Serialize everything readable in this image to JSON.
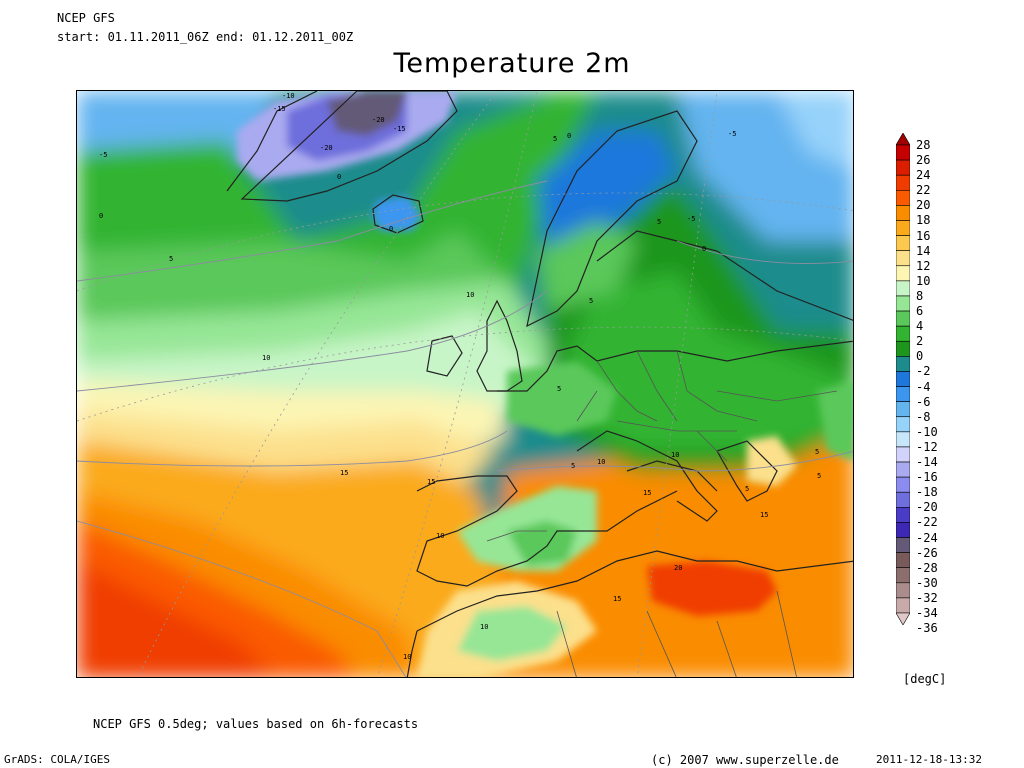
{
  "header": {
    "model": "NCEP GFS",
    "period": "start: 01.11.2011_06Z   end: 01.12.2011_00Z",
    "title": "Temperature 2m"
  },
  "footer": {
    "note": "NCEP GFS 0.5deg; values based on 6h-forecasts",
    "grads": "GrADS: COLA/IGES",
    "copyright": "(c) 2007 www.superzelle.de",
    "timestamp": "2011-12-18-13:32"
  },
  "legend": {
    "unit": "[degC]",
    "levels": [
      "28",
      "26",
      "24",
      "22",
      "20",
      "18",
      "16",
      "14",
      "12",
      "10",
      "8",
      "6",
      "4",
      "2",
      "0",
      "-2",
      "-4",
      "-6",
      "-8",
      "-10",
      "-12",
      "-14",
      "-16",
      "-18",
      "-20",
      "-22",
      "-24",
      "-26",
      "-28",
      "-30",
      "-32",
      "-34",
      "-36"
    ],
    "colors": [
      "#a00000",
      "#c40000",
      "#dc1e00",
      "#f03c00",
      "#fa5a00",
      "#fa8c00",
      "#fbaa1e",
      "#fcc850",
      "#fce08c",
      "#fcf5b4",
      "#c8f5c8",
      "#96e696",
      "#5ac85a",
      "#32b432",
      "#1e961e",
      "#1e8c8c",
      "#1e78dc",
      "#3c96f0",
      "#64b4f0",
      "#96d2fa",
      "#c8e6fa",
      "#d2d2fa",
      "#aaaaf0",
      "#8c8cf0",
      "#6e6edc",
      "#4b3cc8",
      "#3c28b4",
      "#645a78",
      "#785a5a",
      "#8c6e6e",
      "#aa8c8c",
      "#c8aaaa",
      "#e1c8c8"
    ]
  },
  "contours": [
    "-10",
    "-15",
    "-20",
    "-15",
    "-20",
    "-5",
    "0",
    "0",
    "5",
    "-5",
    "0",
    "5",
    "0",
    "5",
    "0",
    "-5",
    "5",
    "10",
    "10",
    "5",
    "5",
    "15",
    "10",
    "5",
    "15",
    "10",
    "15",
    "10",
    "15",
    "20",
    "15",
    "10",
    "10",
    "5",
    "5"
  ]
}
